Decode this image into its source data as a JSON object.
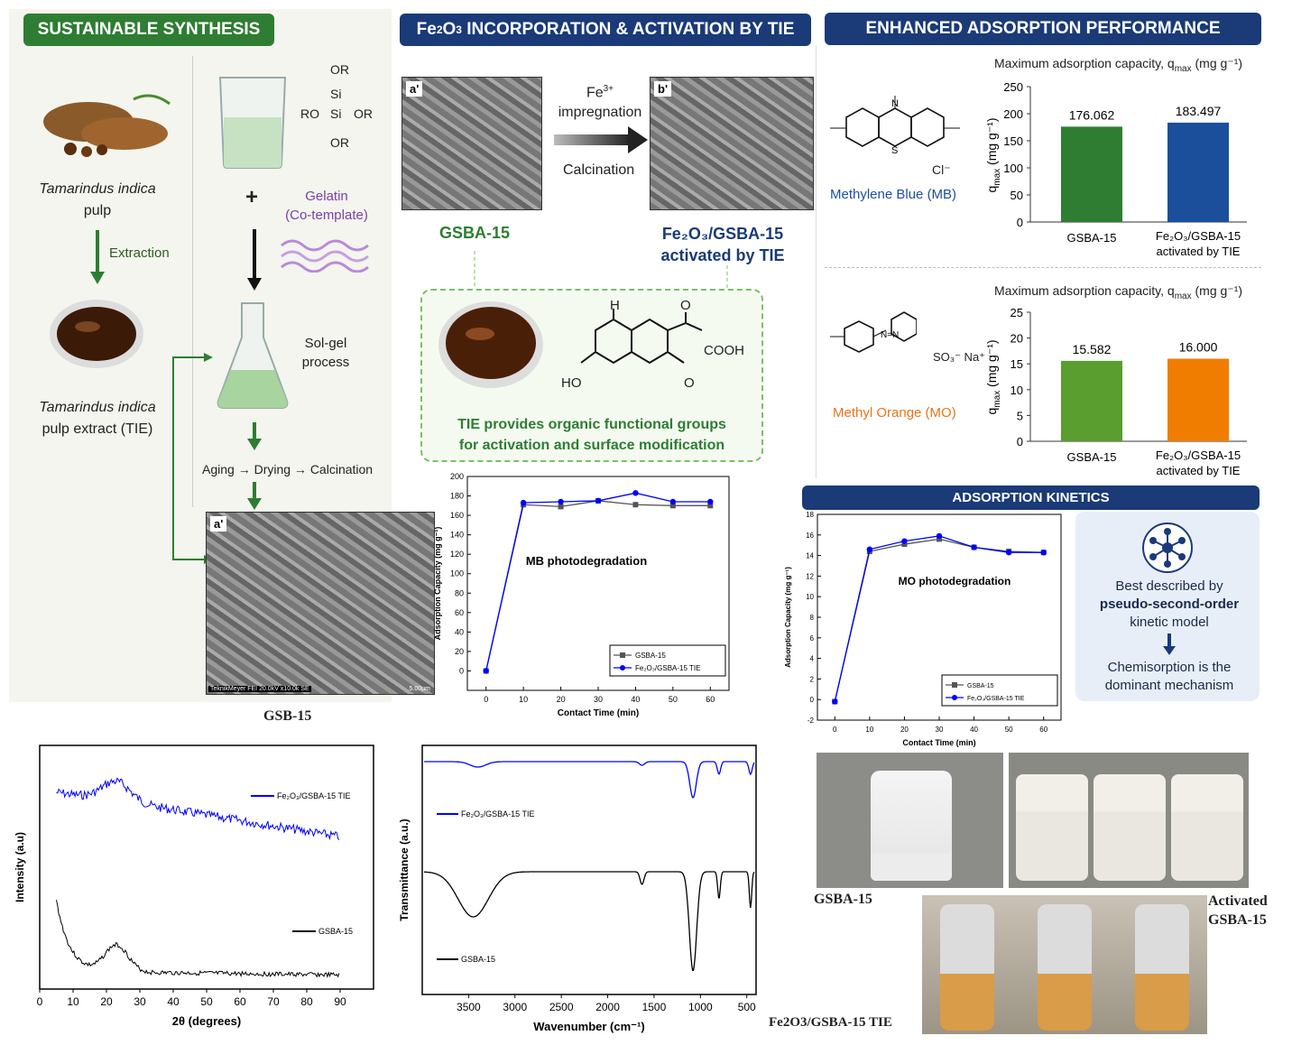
{
  "headers": {
    "synthesis": "SUSTAINABLE SYNTHESIS",
    "incorporation": "INCORPORATION & ACTIVATION BY TIE",
    "incorporation_prefix": "Fe",
    "incorporation_sub1": "2",
    "incorporation_mid": "O",
    "incorporation_sub2": "3",
    "adsorption": "ENHANCED ADSORPTION PERFORMANCE",
    "kinetics": "ADSORPTION KINETICS"
  },
  "synthesis": {
    "tamarind_label_1": "Tamarindus indica",
    "tamarind_label_2": "pulp",
    "extraction": "Extraction",
    "extract_label_1": "Tamarindus indica",
    "extract_label_2": "pulp extract (TIE)",
    "silica": {
      "or_top": "OR",
      "si1": "Si",
      "ro": "RO",
      "si2": "Si",
      "or_right": "OR",
      "or_bottom": "OR"
    },
    "plus": "+",
    "gelatin": "Gelatin",
    "cotemplate": "(Co-template)",
    "solgel_1": "Sol-gel",
    "solgel_2": "process",
    "aging": "Aging → Drying → Calcination",
    "sem_label": "a'",
    "sem_caption": "TeknikMeyer FEI 20.0kV x10.0k SE",
    "sem_scale": "5.00µm",
    "bottom_caption": "GSB-15"
  },
  "incorporation": {
    "sem_a": "a'",
    "sem_b": "b'",
    "arrow_top_1": "Fe",
    "arrow_top_sup": "3+",
    "arrow_top_2": "impregnation",
    "arrow_bottom": "Calcination",
    "gsba_label": "GSBA-15",
    "fe_label_1": "Fe₂O₃/GSBA-15",
    "fe_label_2": "activated by TIE",
    "tie_text_1": "TIE provides organic functional groups",
    "tie_text_2": "for activation and surface modification",
    "mol": {
      "h": "H",
      "cooh": "COOH",
      "ho": "HO",
      "o1": "O",
      "o2": "O"
    }
  },
  "mb": {
    "title": "Maximum adsorption capacity, q",
    "title_sub": "max",
    "title_unit": " (mg g⁻¹)",
    "dye_name": "Methylene Blue (MB)",
    "dye_color": "#1b4f9c",
    "counter_ion": "Cl⁻",
    "ylabel": "q",
    "ylabel_sub": "max",
    "ylabel_unit": " (mg g⁻¹)",
    "cat1": "GSBA-15",
    "cat2_1": "Fe₂O₃/GSBA-15",
    "cat2_2": "activated by TIE",
    "val1": "176.062",
    "val2": "183.497",
    "ticks": [
      "250",
      "200",
      "150",
      "100",
      "50",
      "0"
    ]
  },
  "mo": {
    "title": "Maximum adsorption capacity, q",
    "title_sub": "max",
    "title_unit": " (mg g⁻¹)",
    "dye_name": "Methyl Orange (MO)",
    "dye_color": "#e8741b",
    "so3": "SO₃⁻ Na⁺",
    "ylabel": "q",
    "ylabel_sub": "max",
    "ylabel_unit": " (mg g⁻¹)",
    "cat1": "GSBA-15",
    "cat2_1": "Fe₂O₃/GSBA-15",
    "cat2_2": "activated by TIE",
    "val1": "15.582",
    "val2": "16.000",
    "ticks": [
      "25",
      "20",
      "15",
      "10",
      "5",
      "0"
    ]
  },
  "kinetics_box": {
    "line1": "Best described by",
    "line2": "pseudo-second-order",
    "line3": "kinetic model",
    "line4": "Chemisorption is the",
    "line5": "dominant mechanism"
  },
  "photos": {
    "gsba": "GSBA-15",
    "activated_1": "Activated",
    "activated_2": "GSBA-15",
    "fe": "Fe2O3/GSBA-15 TIE"
  },
  "chart_data": [
    {
      "id": "mb_kinetics",
      "type": "line",
      "title": "MB photodegradation",
      "xlabel": "Contact Time (min)",
      "ylabel": "Adsorption Capacity (mg g⁻¹)",
      "xlim": [
        -5,
        65
      ],
      "ylim": [
        -20,
        200
      ],
      "xticks": [
        0,
        10,
        20,
        30,
        40,
        50,
        60
      ],
      "yticks": [
        0,
        20,
        40,
        60,
        80,
        100,
        120,
        140,
        160,
        180,
        200
      ],
      "x": [
        0,
        10,
        20,
        30,
        40,
        50,
        60
      ],
      "series": [
        {
          "name": "GSBA-15",
          "color": "#555555",
          "values": [
            0,
            171,
            169,
            175,
            171,
            170,
            170
          ]
        },
        {
          "name": "Fe₂O₃/GSBA-15 TIE",
          "color": "#0000ff",
          "values": [
            0,
            173,
            174,
            175,
            183,
            174,
            174
          ]
        }
      ]
    },
    {
      "id": "mo_kinetics",
      "type": "line",
      "title": "MO photodegradation",
      "xlabel": "Contact Time (min)",
      "ylabel": "Adsorption Capacity (mg g⁻¹)",
      "xlim": [
        -5,
        65
      ],
      "ylim": [
        -2,
        18
      ],
      "xticks": [
        0,
        10,
        20,
        30,
        40,
        50,
        60
      ],
      "yticks": [
        -2,
        0,
        2,
        4,
        6,
        8,
        10,
        12,
        14,
        16,
        18
      ],
      "x": [
        0,
        10,
        20,
        30,
        40,
        50,
        60
      ],
      "series": [
        {
          "name": "GSBA-15",
          "color": "#555555",
          "values": [
            -0.2,
            14.4,
            15.1,
            15.6,
            14.8,
            14.4,
            14.3
          ]
        },
        {
          "name": "Fe₂O₃/GSBA-15 TIE",
          "color": "#0000ff",
          "values": [
            -0.2,
            14.6,
            15.4,
            15.9,
            14.8,
            14.3,
            14.3
          ]
        }
      ]
    },
    {
      "id": "mb_bar",
      "type": "bar",
      "categories": [
        "GSBA-15",
        "Fe₂O₃/GSBA-15 activated by TIE"
      ],
      "values": [
        176.062,
        183.497
      ],
      "ylim": [
        0,
        250
      ],
      "colors": [
        "#2e7d32",
        "#1b4f9c"
      ]
    },
    {
      "id": "mo_bar",
      "type": "bar",
      "categories": [
        "GSBA-15",
        "Fe₂O₃/GSBA-15 activated by TIE"
      ],
      "values": [
        15.582,
        16.0
      ],
      "ylim": [
        0,
        25
      ],
      "colors": [
        "#5a9e2f",
        "#f07d00"
      ]
    },
    {
      "id": "xrd",
      "type": "line",
      "xlabel": "2θ (degrees)",
      "ylabel": "Intensity (a.u)",
      "xlim": [
        0,
        100
      ],
      "xticks": [
        0,
        10,
        20,
        30,
        40,
        50,
        60,
        70,
        80,
        90
      ],
      "series": [
        {
          "name": "Fe₂O₃/GSBA-15 TIE",
          "color": "#0000ff"
        },
        {
          "name": "GSBA-15",
          "color": "#000000"
        }
      ]
    },
    {
      "id": "ftir",
      "type": "line",
      "xlabel": "Wavenumber (cm⁻¹)",
      "ylabel": "Transmittance (a.u.)",
      "xlim": [
        4000,
        400
      ],
      "xticks": [
        3500,
        3000,
        2500,
        2000,
        1500,
        1000,
        500
      ],
      "series": [
        {
          "name": "Fe₂O₃/GSBA-15 TIE",
          "color": "#0000ff"
        },
        {
          "name": "GSBA-15",
          "color": "#000000"
        }
      ]
    }
  ]
}
